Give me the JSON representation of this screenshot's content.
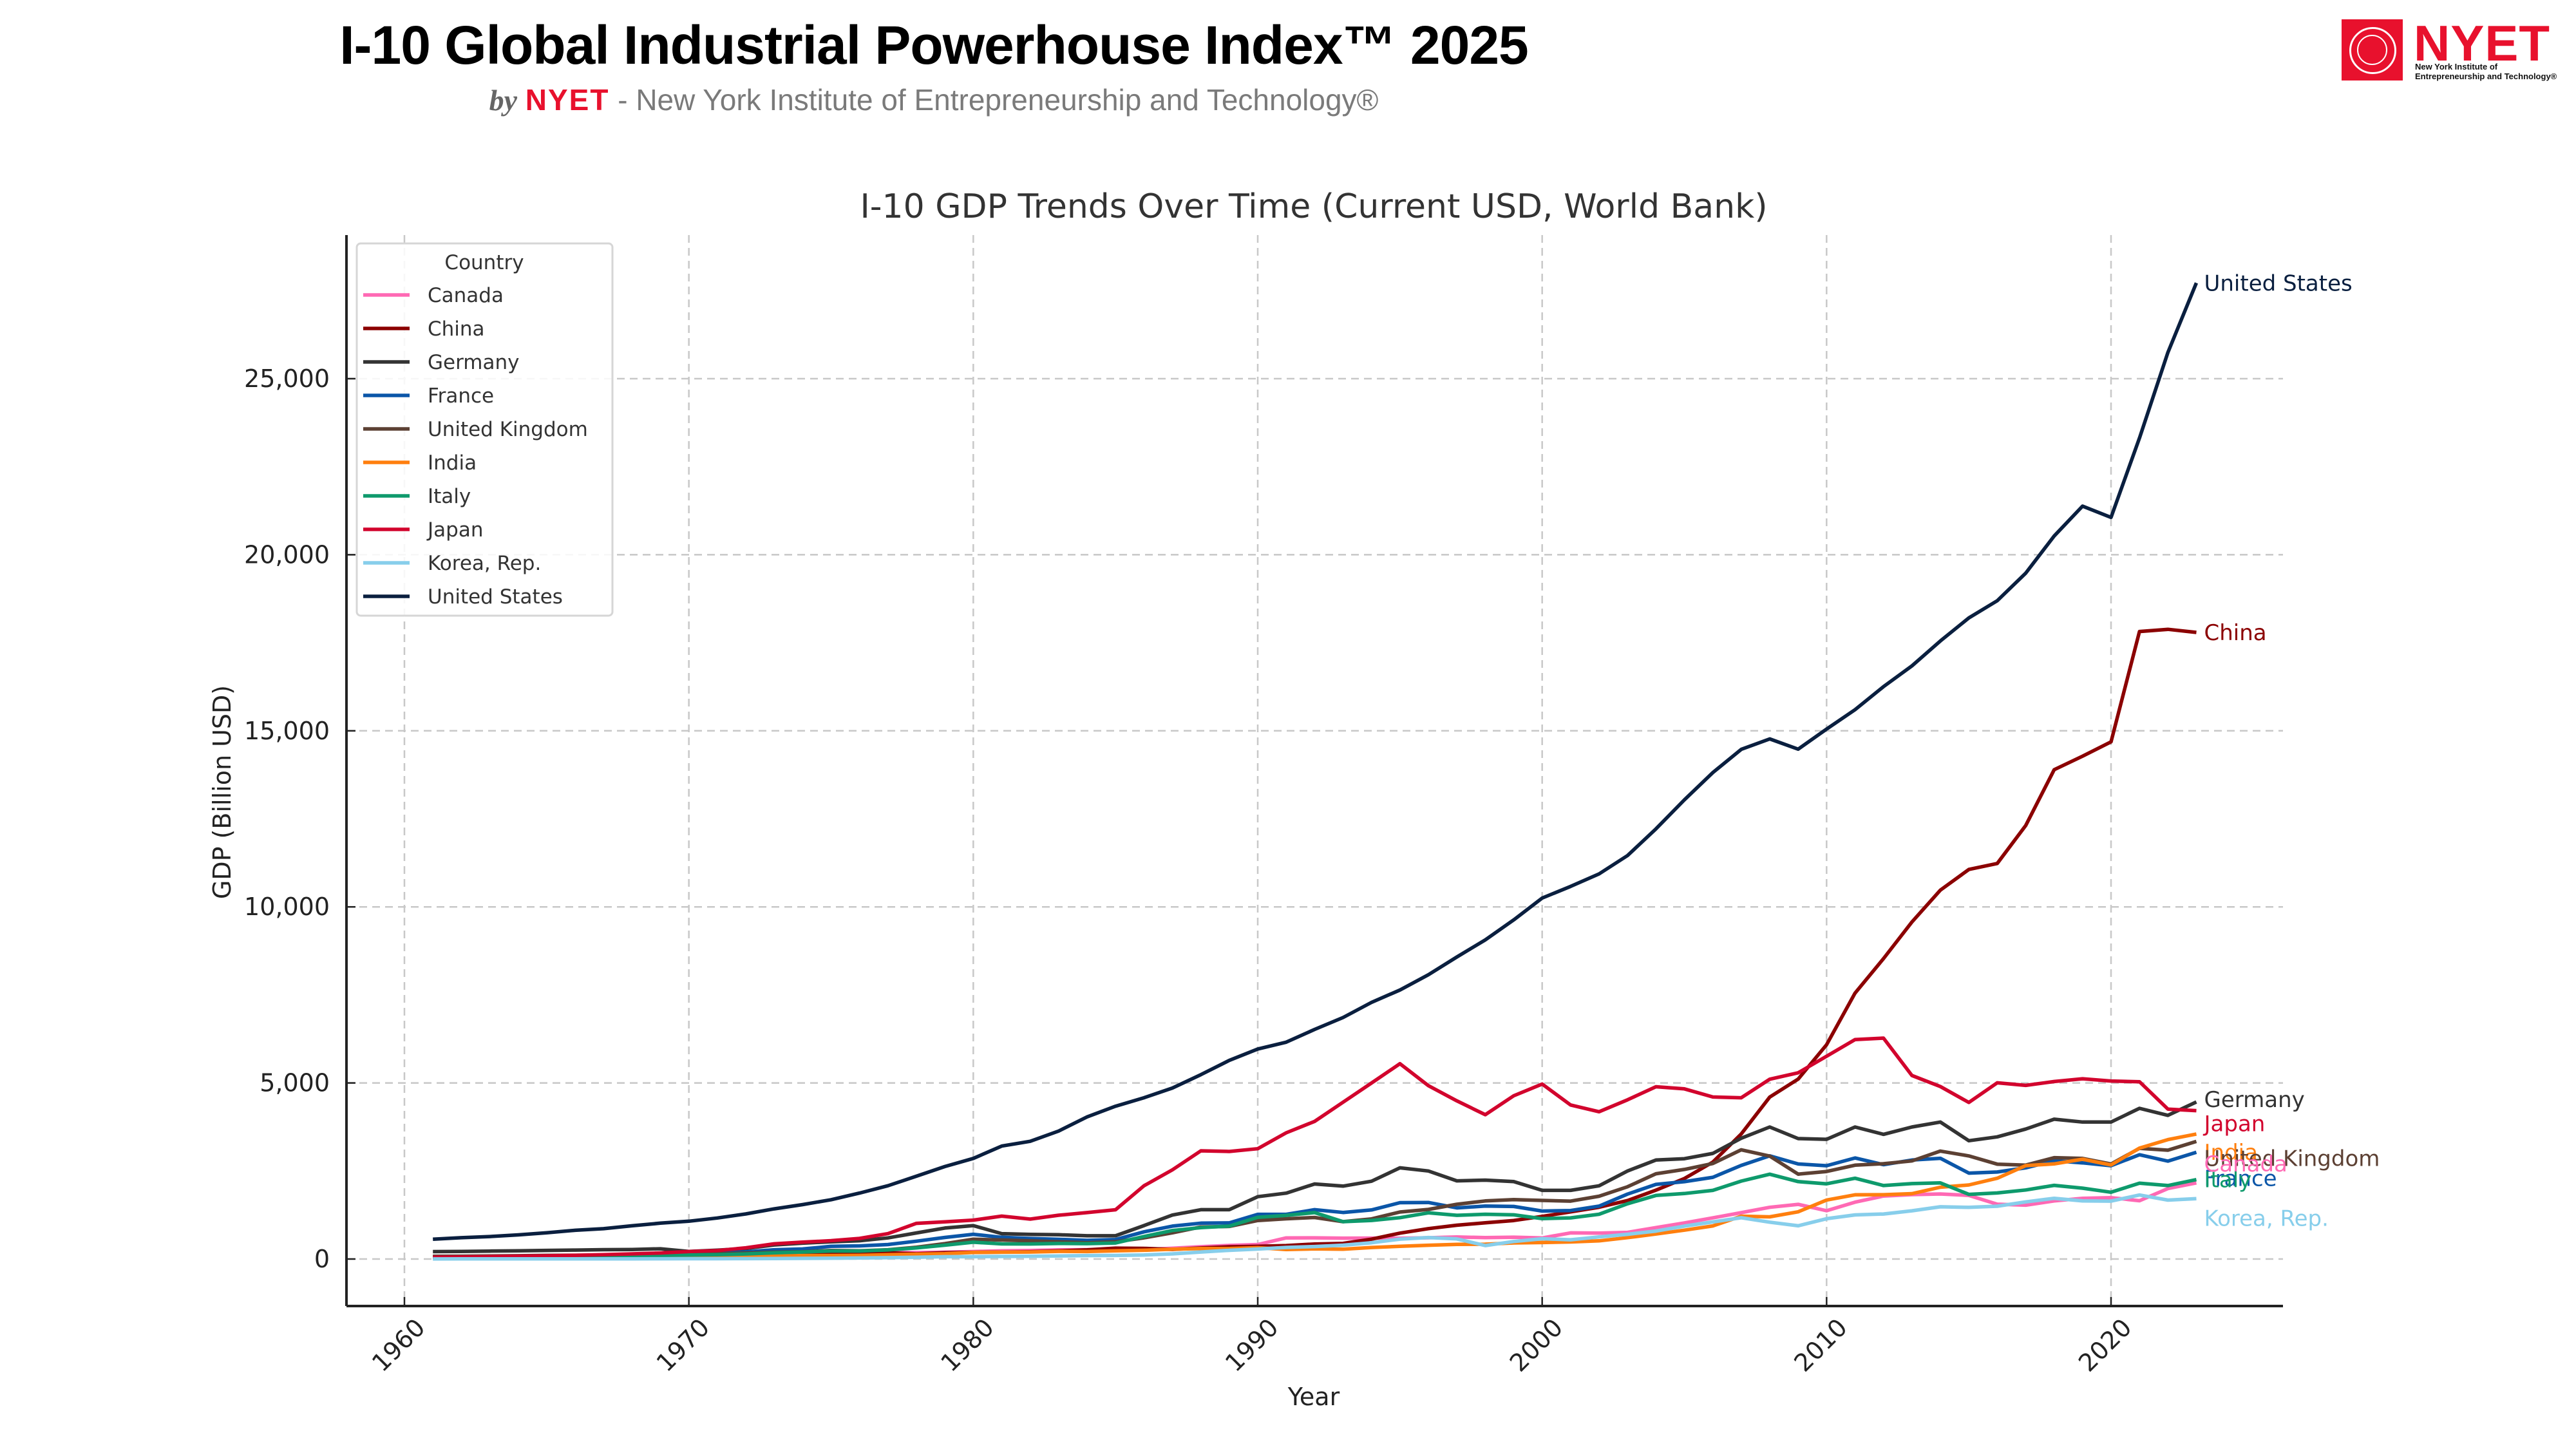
{
  "header": {
    "title": "I-10 Global Industrial Powerhouse Index™ 2025",
    "subtitle_by": "by",
    "subtitle_brand": "NYET",
    "subtitle_rest": " - New York Institute of Entrepreneurship and Technology®"
  },
  "logo": {
    "wordmark": "NYET",
    "line1": "New York Institute of",
    "line2": "Entrepreneurship and Technology®",
    "brand_color": "#e8112d"
  },
  "chart_data": {
    "type": "line",
    "title": "I-10 GDP Trends Over Time (Current USD, World Bank)",
    "xlabel": "Year",
    "ylabel": "GDP (Billion USD)",
    "xlim": [
      1957,
      2026
    ],
    "ylim": [
      -1400,
      29000
    ],
    "xticks": [
      1960,
      1970,
      1980,
      1990,
      2000,
      2010,
      2020
    ],
    "yticks": [
      0,
      5000,
      10000,
      15000,
      20000,
      25000
    ],
    "ytick_labels": [
      "0",
      "5,000",
      "10,000",
      "15,000",
      "20,000",
      "25,000"
    ],
    "grid": true,
    "legend": {
      "title": "Country",
      "placement": "top-left"
    },
    "x_start": 1961,
    "x_end": 2023,
    "series": [
      {
        "name": "Canada",
        "color": "#ff69b4",
        "values": [
          41,
          42,
          45,
          48,
          52,
          57,
          62,
          66,
          72,
          79,
          88,
          99,
          113,
          138,
          152,
          174,
          181,
          182,
          193,
          213,
          233,
          241,
          260,
          265,
          265,
          271,
          305,
          350,
          385,
          412,
          599,
          601,
          592,
          595,
          590,
          604,
          628,
          607,
          620,
          598,
          742,
          736,
          758,
          892,
          1024,
          1169,
          1316,
          1469,
          1552,
          1371,
          1614,
          1789,
          1829,
          1847,
          1806,
          1556,
          1528,
          1650,
          1725,
          1743,
          1655,
          2001,
          2161,
          2140
        ],
        "values_note": "approximate, read from plot"
      },
      {
        "name": "China",
        "color": "#8b0000",
        "values": [
          50,
          47,
          51,
          59,
          70,
          76,
          72,
          70,
          80,
          92,
          100,
          114,
          139,
          144,
          163,
          154,
          175,
          149,
          178,
          191,
          196,
          205,
          231,
          260,
          309,
          301,
          273,
          312,
          348,
          360,
          383,
          427,
          444,
          564,
          735,
          864,
          961,
          1029,
          1094,
          1211,
          1339,
          1471,
          1660,
          1955,
          2286,
          2752,
          3552,
          4598,
          5109,
          6087,
          7552,
          8532,
          9570,
          10476,
          11062,
          11233,
          12310,
          13895,
          14280,
          14688,
          17820,
          17882,
          17795,
          17795
        ]
      },
      {
        "name": "Germany",
        "color": "#333333",
        "values": [
          0,
          0,
          0,
          0,
          0,
          0,
          0,
          0,
          0,
          215,
          250,
          300,
          400,
          450,
          490,
          520,
          600,
          740,
          880,
          950,
          720,
          700,
          690,
          660,
          660,
          950,
          1250,
          1400,
          1400,
          1770,
          1870,
          2130,
          2070,
          2210,
          2590,
          2500,
          2220,
          2240,
          2200,
          1950,
          1950,
          2080,
          2500,
          2810,
          2850,
          3000,
          3430,
          3750,
          3420,
          3400,
          3750,
          3540,
          3750,
          3890,
          3360,
          3470,
          3690,
          3970,
          3890,
          3890,
          4280,
          4080,
          4460,
          4460
        ]
      },
      {
        "name": "France",
        "color": "#0b56a8",
        "values": [
          63,
          68,
          76,
          85,
          94,
          102,
          110,
          119,
          126,
          148,
          165,
          203,
          264,
          286,
          360,
          373,
          411,
          507,
          613,
          702,
          617,
          584,
          559,
          531,
          553,
          772,
          935,
          1018,
          1026,
          1269,
          1269,
          1401,
          1322,
          1394,
          1601,
          1605,
          1452,
          1503,
          1492,
          1362,
          1377,
          1501,
          1844,
          2119,
          2196,
          2320,
          2660,
          2930,
          2700,
          2650,
          2870,
          2680,
          2810,
          2860,
          2440,
          2470,
          2590,
          2790,
          2730,
          2650,
          2960,
          2780,
          3030,
          3030
        ]
      },
      {
        "name": "United Kingdom",
        "color": "#5c4033",
        "values": [
          77,
          81,
          86,
          94,
          102,
          108,
          112,
          108,
          117,
          130,
          148,
          170,
          192,
          206,
          241,
          232,
          263,
          335,
          438,
          564,
          540,
          515,
          489,
          461,
          489,
          601,
          745,
          910,
          926,
          1093,
          1143,
          1180,
          1061,
          1140,
          1335,
          1408,
          1555,
          1650,
          1688,
          1665,
          1644,
          1784,
          2052,
          2421,
          2544,
          2713,
          3101,
          2923,
          2410,
          2485,
          2664,
          2707,
          2785,
          3065,
          2928,
          2694,
          2666,
          2878,
          2857,
          2697,
          3143,
          3090,
          3340,
          3340
        ]
      },
      {
        "name": "India",
        "color": "#ff7f0e",
        "values": [
          39,
          42,
          48,
          56,
          59,
          45,
          50,
          53,
          58,
          62,
          67,
          71,
          85,
          99,
          98,
          102,
          121,
          137,
          152,
          186,
          193,
          200,
          218,
          212,
          232,
          248,
          279,
          296,
          296,
          321,
          270,
          288,
          279,
          327,
          360,
          392,
          415,
          421,
          458,
          468,
          485,
          515,
          607,
          709,
          820,
          940,
          1216,
          1198,
          1341,
          1675,
          1823,
          1827,
          1856,
          2039,
          2103,
          2294,
          2651,
          2702,
          2835,
          2671,
          3150,
          3390,
          3550,
          3550
        ]
      },
      {
        "name": "Italy",
        "color": "#0e9a6c",
        "values": [
          46,
          52,
          59,
          66,
          72,
          78,
          86,
          93,
          103,
          113,
          124,
          144,
          175,
          199,
          227,
          227,
          257,
          314,
          393,
          478,
          430,
          428,
          441,
          438,
          455,
          640,
          810,
          890,
          935,
          1185,
          1240,
          1318,
          1061,
          1095,
          1174,
          1312,
          1242,
          1271,
          1255,
          1147,
          1169,
          1271,
          1570,
          1805,
          1860,
          1950,
          2212,
          2408,
          2198,
          2136,
          2294,
          2087,
          2141,
          2162,
          1836,
          1877,
          1961,
          2092,
          2012,
          1897,
          2155,
          2087,
          2255,
          2255
        ]
      },
      {
        "name": "Japan",
        "color": "#d2042d",
        "values": [
          53,
          60,
          69,
          81,
          91,
          106,
          124,
          146,
          172,
          212,
          240,
          318,
          432,
          479,
          521,
          586,
          721,
          1014,
          1055,
          1105,
          1218,
          1134,
          1243,
          1318,
          1399,
          2079,
          2533,
          3072,
          3055,
          3133,
          3585,
          3909,
          4454,
          4999,
          5546,
          4923,
          4492,
          4098,
          4636,
          4968,
          4374,
          4183,
          4520,
          4893,
          4831,
          4601,
          4580,
          5106,
          5289,
          5759,
          6233,
          6272,
          5212,
          4897,
          4445,
          5004,
          4931,
          5041,
          5118,
          5055,
          5034,
          4257,
          4213,
          4213
        ]
      },
      {
        "name": "Korea, Rep.",
        "color": "#87ceeb",
        "values": [
          2,
          3,
          4,
          3,
          3,
          4,
          5,
          6,
          8,
          9,
          10,
          11,
          14,
          19,
          22,
          30,
          38,
          52,
          66,
          65,
          73,
          78,
          88,
          98,
          102,
          115,
          147,
          199,
          246,
          283,
          330,
          355,
          393,
          463,
          566,
          610,
          570,
          383,
          497,
          576,
          547,
          627,
          703,
          793,
          934,
          1053,
          1172,
          1047,
          944,
          1144,
          1253,
          1278,
          1370,
          1484,
          1466,
          1500,
          1623,
          1725,
          1651,
          1645,
          1818,
          1673,
          1713,
          1713
        ]
      },
      {
        "name": "United States",
        "color": "#0a1f3f",
        "values": [
          563,
          605,
          638,
          686,
          744,
          815,
          862,
          943,
          1019,
          1073,
          1165,
          1280,
          1425,
          1545,
          1684,
          1873,
          2081,
          2351,
          2627,
          2857,
          3207,
          3344,
          3634,
          4037,
          4339,
          4579,
          4855,
          5236,
          5641,
          5963,
          6158,
          6520,
          6858,
          7287,
          7639,
          8073,
          8577,
          9062,
          9631,
          10251,
          10582,
          10936,
          11458,
          12214,
          13039,
          13815,
          14474,
          14770,
          14478,
          15049,
          15600,
          16254,
          16843,
          17551,
          18206,
          18695,
          19477,
          20533,
          21381,
          21060,
          23315,
          25744,
          27720,
          27720
        ]
      }
    ],
    "end_labels": [
      "United States",
      "China",
      "Germany",
      "Japan",
      "India",
      "United Kingdom",
      "France",
      "Italy",
      "Canada",
      "Korea, Rep."
    ]
  }
}
